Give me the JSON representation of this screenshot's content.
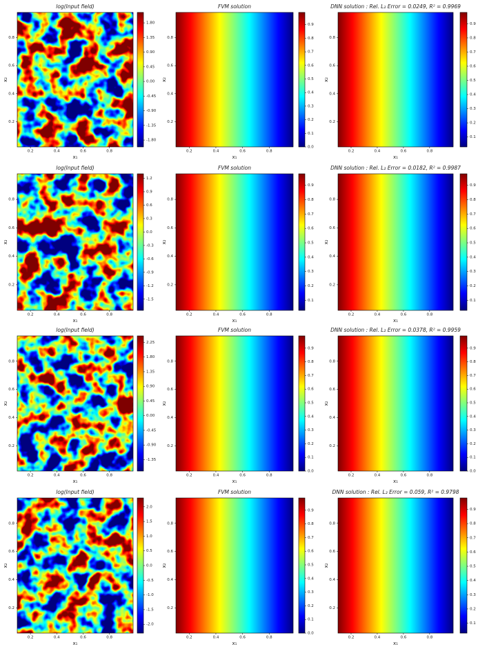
{
  "chart_data": [
    {
      "type": "heatmap",
      "title": "log(Input field)",
      "xlabel": "x₁",
      "ylabel": "x₂",
      "xlim": [
        0.1,
        0.98
      ],
      "ylim": [
        0.02,
        0.98
      ],
      "xticks": [
        0.2,
        0.4,
        0.6,
        0.8
      ],
      "yticks": [
        0.2,
        0.4,
        0.6,
        0.8
      ],
      "colormap": "jet",
      "clim": [
        -2.01,
        2.12
      ],
      "cticks": [
        {
          "value": 1.8,
          "label": "1.80"
        },
        1.35,
        {
          "value": 0.9,
          "label": "0.90"
        },
        0.45,
        {
          "value": 0,
          "label": "0.00"
        },
        -0.45,
        {
          "value": -0.9,
          "label": "-0.90"
        },
        -1.35,
        {
          "value": -1.8,
          "label": "-1.80"
        }
      ]
    },
    {
      "type": "heatmap",
      "title": "FVM solution",
      "xlabel": "x₁",
      "ylabel": "x₂",
      "xlim": [
        0.1,
        0.98
      ],
      "ylim": [
        0.02,
        0.98
      ],
      "xticks": [
        0.2,
        0.4,
        0.6,
        0.8
      ],
      "yticks": [
        0.2,
        0.4,
        0.6,
        0.8
      ],
      "colormap": "jet",
      "clim": [
        0,
        0.99
      ],
      "cticks": [
        {
          "value": 0,
          "label": "0.0"
        },
        0.1,
        0.2,
        0.3,
        0.4,
        0.5,
        0.6,
        0.7,
        0.8,
        0.9
      ]
    },
    {
      "type": "heatmap",
      "title": "DNN solution : Rel. L₂ Error = 0.0249, R² = 0.9969",
      "xlabel": "x₁",
      "ylabel": "x₂",
      "xlim": [
        0.1,
        0.98
      ],
      "ylim": [
        0.02,
        0.98
      ],
      "xticks": [
        0.2,
        0.4,
        0.6,
        0.8
      ],
      "yticks": [
        0.2,
        0.4,
        0.6,
        0.8
      ],
      "colormap": "jet",
      "clim": [
        0.03,
        0.98
      ],
      "cticks": [
        0.1,
        0.2,
        0.3,
        0.4,
        0.5,
        0.6,
        0.7,
        0.8,
        0.9
      ]
    },
    {
      "type": "heatmap",
      "title": "log(Input field)",
      "xlabel": "x₁",
      "ylabel": "x₂",
      "xlim": [
        0.1,
        0.98
      ],
      "ylim": [
        0.02,
        0.98
      ],
      "xticks": [
        0.2,
        0.4,
        0.6,
        0.8
      ],
      "yticks": [
        0.2,
        0.4,
        0.6,
        0.8
      ],
      "colormap": "jet",
      "clim": [
        -1.75,
        1.3
      ],
      "cticks": [
        1.2,
        0.9,
        0.6,
        0.3,
        {
          "value": 0,
          "label": "0.0"
        },
        -0.3,
        -0.6,
        -0.9,
        -1.2,
        -1.5
      ]
    },
    {
      "type": "heatmap",
      "title": "FVM solution",
      "xlabel": "x₁",
      "ylabel": "x₂",
      "xlim": [
        0.1,
        0.98
      ],
      "ylim": [
        0.02,
        0.98
      ],
      "xticks": [
        0.2,
        0.4,
        0.6,
        0.8
      ],
      "yticks": [
        0.2,
        0.4,
        0.6,
        0.8
      ],
      "colormap": "jet",
      "clim": [
        0.03,
        0.98
      ],
      "cticks": [
        0.1,
        0.2,
        0.3,
        0.4,
        0.5,
        0.6,
        0.7,
        0.8,
        0.9
      ]
    },
    {
      "type": "heatmap",
      "title": "DNN solution : Rel. L₂ Error = 0.0182, R² = 0.9987",
      "xlabel": "x₁",
      "ylabel": "x₂",
      "xlim": [
        0.1,
        0.98
      ],
      "ylim": [
        0.02,
        0.98
      ],
      "xticks": [
        0.2,
        0.4,
        0.6,
        0.8
      ],
      "yticks": [
        0.2,
        0.4,
        0.6,
        0.8
      ],
      "colormap": "jet",
      "clim": [
        0.03,
        0.98
      ],
      "cticks": [
        0.1,
        0.2,
        0.3,
        0.4,
        0.5,
        0.6,
        0.7,
        0.8,
        0.9
      ]
    },
    {
      "type": "heatmap",
      "title": "log(Input field)",
      "xlabel": "x₁",
      "ylabel": "x₂",
      "xlim": [
        0.1,
        0.98
      ],
      "ylim": [
        0.02,
        0.98
      ],
      "xticks": [
        0.2,
        0.4,
        0.6,
        0.8
      ],
      "yticks": [
        0.2,
        0.4,
        0.6,
        0.8
      ],
      "colormap": "jet",
      "clim": [
        -1.7,
        2.45
      ],
      "cticks": [
        2.25,
        {
          "value": 1.8,
          "label": "1.80"
        },
        1.35,
        {
          "value": 0.9,
          "label": "0.90"
        },
        0.45,
        {
          "value": 0,
          "label": "0.00"
        },
        -0.45,
        {
          "value": -0.9,
          "label": "-0.90"
        },
        -1.35
      ]
    },
    {
      "type": "heatmap",
      "title": "FVM solution",
      "xlabel": "x₁",
      "ylabel": "x₂",
      "xlim": [
        0.1,
        0.98
      ],
      "ylim": [
        0.02,
        0.98
      ],
      "xticks": [
        0.2,
        0.4,
        0.6,
        0.8
      ],
      "yticks": [
        0.2,
        0.4,
        0.6,
        0.8
      ],
      "colormap": "jet",
      "clim": [
        0,
        0.99
      ],
      "cticks": [
        {
          "value": 0,
          "label": "0.0"
        },
        0.1,
        0.2,
        0.3,
        0.4,
        0.5,
        0.6,
        0.7,
        0.8,
        0.9
      ]
    },
    {
      "type": "heatmap",
      "title": "DNN solution : Rel. L₂ Error = 0.0378, R² = 0.9959",
      "xlabel": "x₁",
      "ylabel": "x₂",
      "xlim": [
        0.1,
        0.98
      ],
      "ylim": [
        0.02,
        0.98
      ],
      "xticks": [
        0.2,
        0.4,
        0.6,
        0.8
      ],
      "yticks": [
        0.2,
        0.4,
        0.6,
        0.8
      ],
      "colormap": "jet",
      "clim": [
        0,
        0.99
      ],
      "cticks": [
        {
          "value": 0,
          "label": "0.0"
        },
        0.1,
        0.2,
        0.3,
        0.4,
        0.5,
        0.6,
        0.7,
        0.8,
        0.9
      ]
    },
    {
      "type": "heatmap",
      "title": "log(Input field)",
      "xlabel": "x₁",
      "ylabel": "x₂",
      "xlim": [
        0.1,
        0.98
      ],
      "ylim": [
        0.02,
        0.98
      ],
      "xticks": [
        0.2,
        0.4,
        0.6,
        0.8
      ],
      "yticks": [
        0.2,
        0.4,
        0.6,
        0.8
      ],
      "colormap": "jet",
      "clim": [
        -2.3,
        2.3
      ],
      "cticks": [
        {
          "value": 2,
          "label": "2.0"
        },
        1.5,
        {
          "value": 1,
          "label": "1.0"
        },
        0.5,
        {
          "value": 0,
          "label": "0.0"
        },
        -0.5,
        {
          "value": -1,
          "label": "-1.0"
        },
        -1.5,
        {
          "value": -2,
          "label": "-2.0"
        }
      ]
    },
    {
      "type": "heatmap",
      "title": "FVM solution",
      "xlabel": "x₁",
      "ylabel": "x₂",
      "xlim": [
        0.1,
        0.98
      ],
      "ylim": [
        0.02,
        0.98
      ],
      "xticks": [
        0.2,
        0.4,
        0.6,
        0.8
      ],
      "yticks": [
        0.2,
        0.4,
        0.6,
        0.8
      ],
      "colormap": "jet",
      "clim": [
        0,
        0.99
      ],
      "cticks": [
        {
          "value": 0,
          "label": "0.0"
        },
        0.1,
        0.2,
        0.3,
        0.4,
        0.5,
        0.6,
        0.7,
        0.8,
        0.9
      ]
    },
    {
      "type": "heatmap",
      "title": "DNN solution : Rel. L₂ Error = 0.059, R² = 0.9798",
      "xlabel": "x₁",
      "ylabel": "x₂",
      "xlim": [
        0.1,
        0.98
      ],
      "ylim": [
        0.02,
        0.98
      ],
      "xticks": [
        0.2,
        0.4,
        0.6,
        0.8
      ],
      "yticks": [
        0.2,
        0.4,
        0.6,
        0.8
      ],
      "colormap": "jet",
      "clim": [
        0.03,
        0.98
      ],
      "cticks": [
        0.1,
        0.2,
        0.3,
        0.4,
        0.5,
        0.6,
        0.7,
        0.8,
        0.9
      ]
    }
  ]
}
